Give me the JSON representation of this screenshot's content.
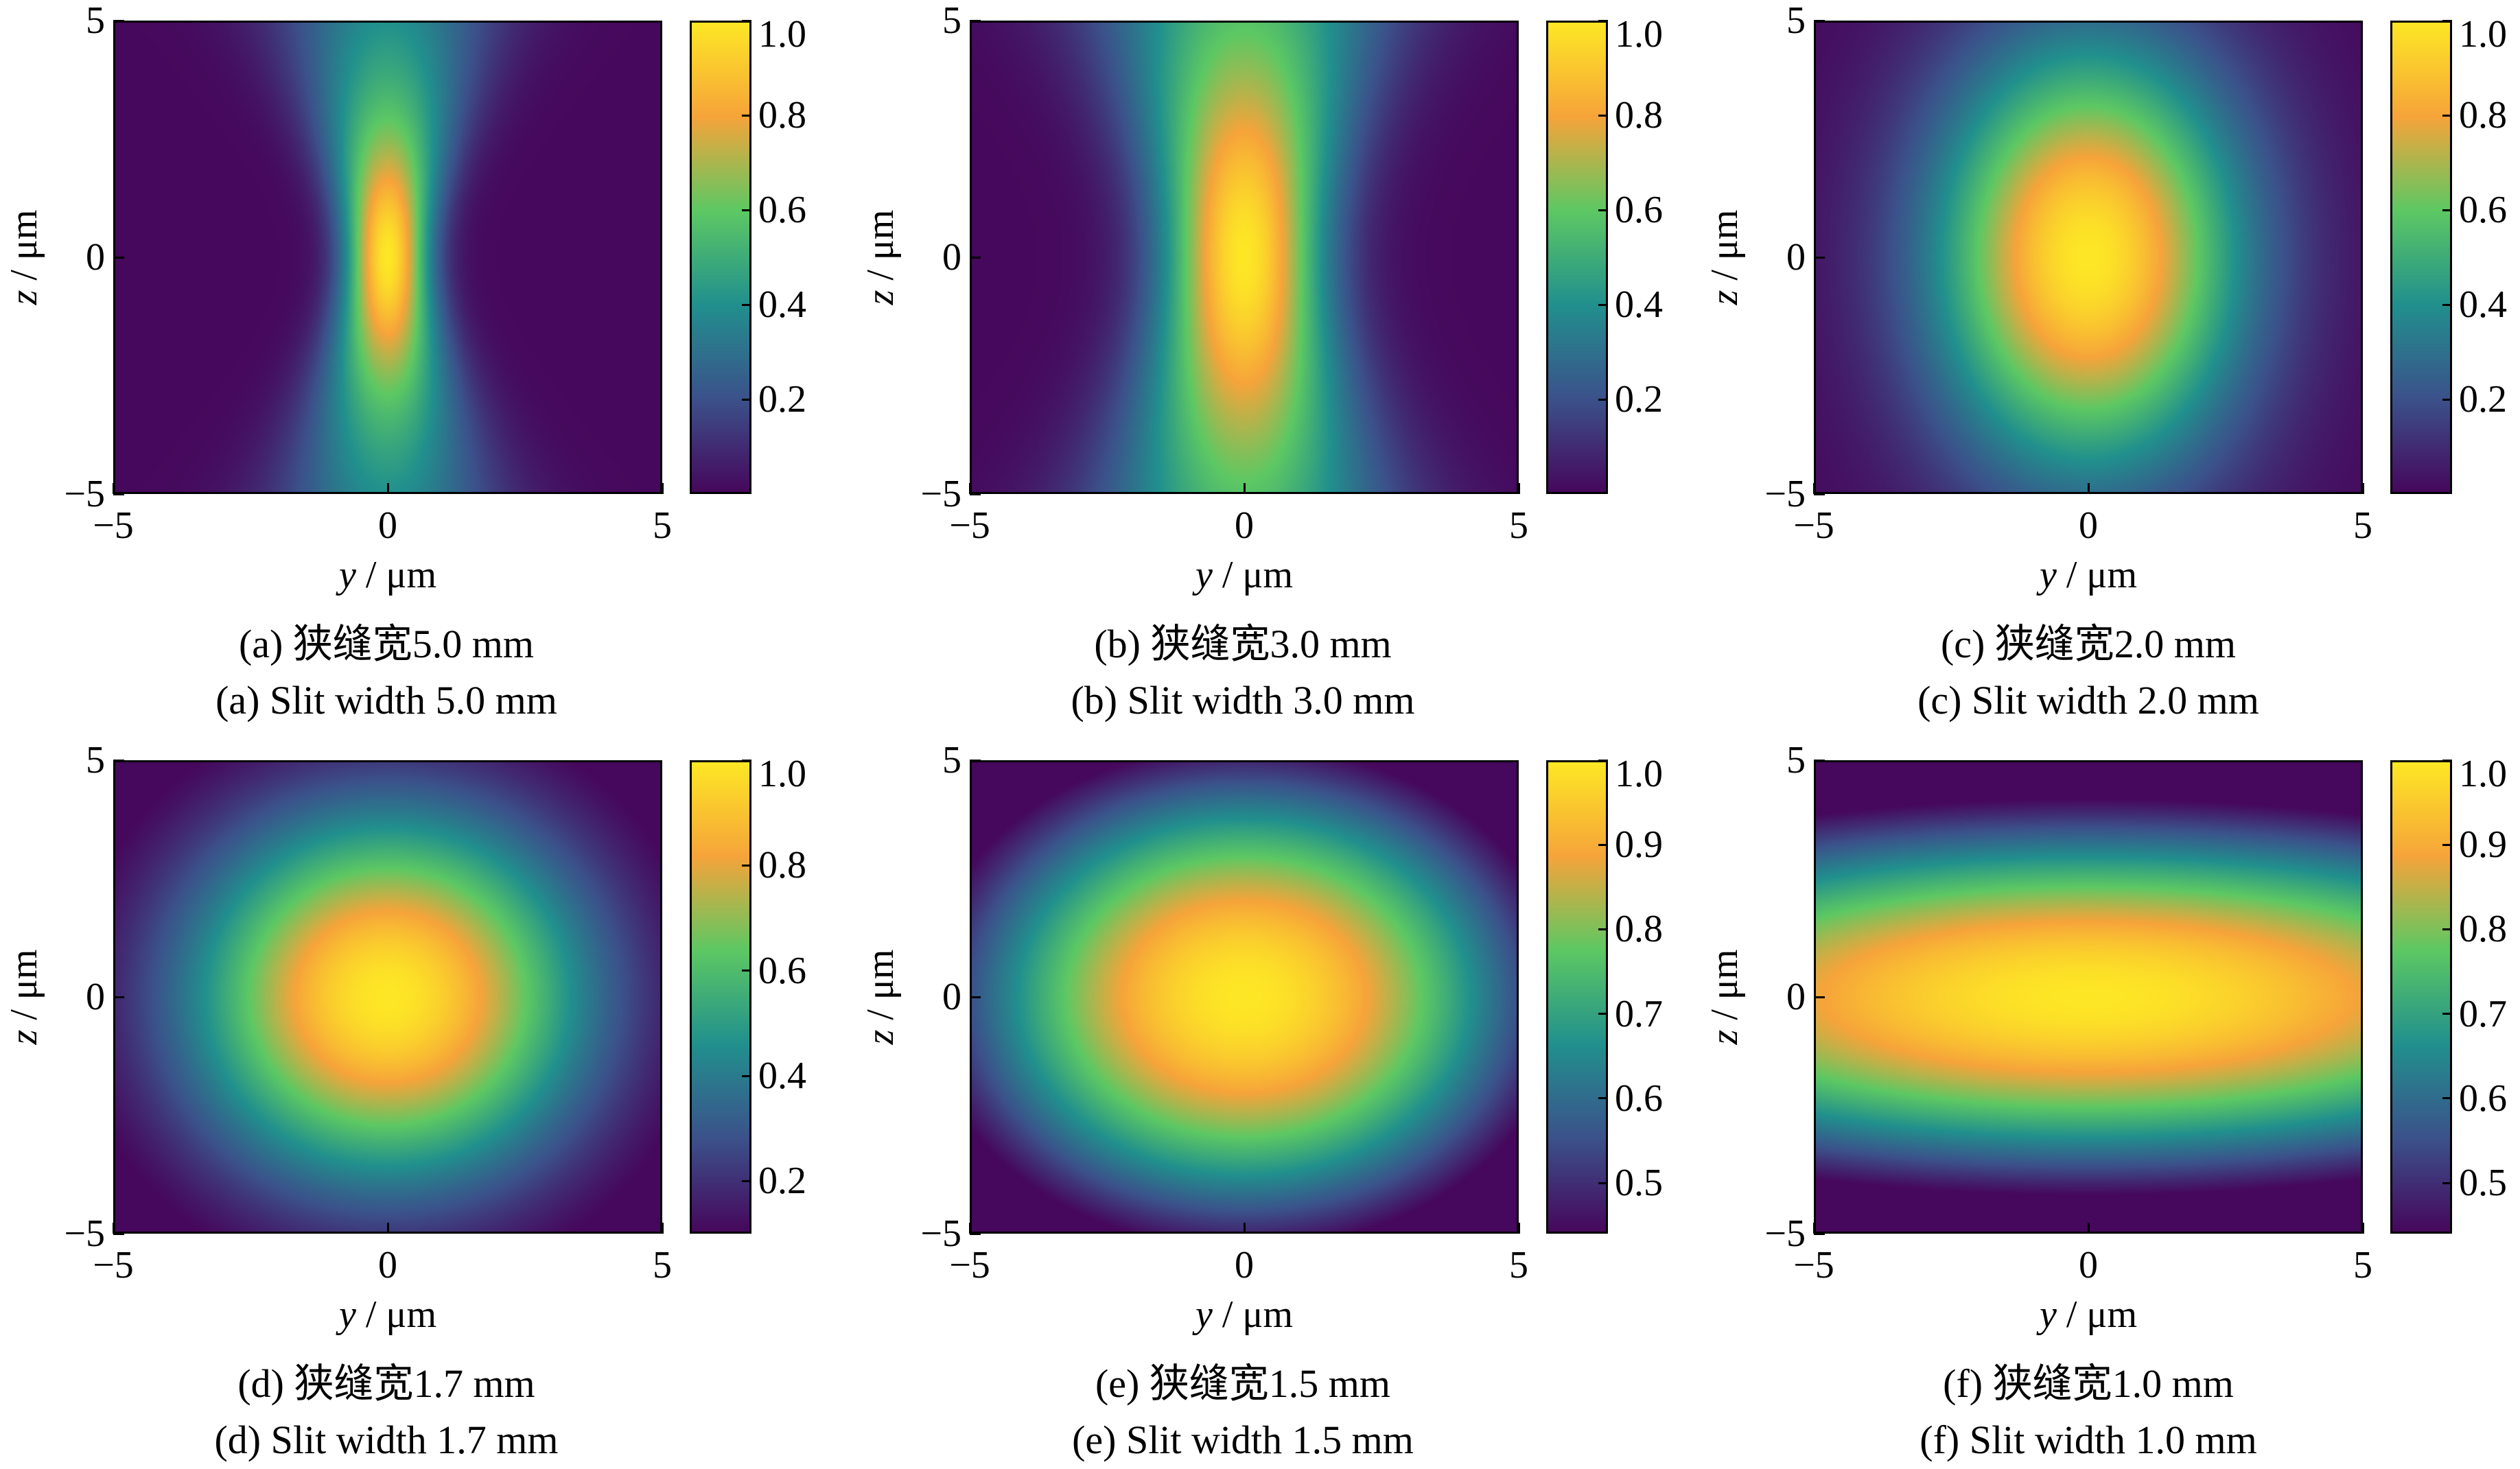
{
  "chart_data": [
    {
      "type": "heatmap",
      "caption_cn": "(a) 狭缝宽5.0 mm",
      "caption_en": "(a) Slit width 5.0 mm",
      "xlabel_var": "y",
      "xlabel_unit": " / μm",
      "ylabel_var": "z",
      "ylabel_unit": " / μm",
      "xlim": [
        -5,
        5
      ],
      "ylim": [
        -5,
        5
      ],
      "xticks": [
        "−5",
        "0",
        "5"
      ],
      "yticks": [
        "5",
        "0",
        "−5"
      ],
      "colorbar_ticks": [
        "1.0",
        "0.8",
        "0.6",
        "0.4",
        "0.2"
      ],
      "colorbar_values": [
        1.0,
        0.8,
        0.6,
        0.4,
        0.2
      ],
      "colorbar_range": [
        0.0,
        1.0
      ],
      "field": {
        "sigma_y0": 0.55,
        "z_rayleigh": 2.2,
        "y_floor": 0.0,
        "model": "focused"
      }
    },
    {
      "type": "heatmap",
      "caption_cn": "(b) 狭缝宽3.0 mm",
      "caption_en": "(b) Slit width 3.0 mm",
      "xlabel_var": "y",
      "xlabel_unit": " / μm",
      "ylabel_var": "z",
      "ylabel_unit": " / μm",
      "xlim": [
        -5,
        5
      ],
      "ylim": [
        -5,
        5
      ],
      "xticks": [
        "−5",
        "0",
        "5"
      ],
      "yticks": [
        "5",
        "0",
        "−5"
      ],
      "colorbar_ticks": [
        "1.0",
        "0.8",
        "0.6",
        "0.4",
        "0.2"
      ],
      "colorbar_values": [
        1.0,
        0.8,
        0.6,
        0.4,
        0.2
      ],
      "colorbar_range": [
        0.0,
        1.0
      ],
      "field": {
        "sigma_y0": 1.05,
        "z_rayleigh": 3.6,
        "y_floor": 0.0,
        "model": "focused"
      }
    },
    {
      "type": "heatmap",
      "caption_cn": "(c) 狭缝宽2.0 mm",
      "caption_en": "(c) Slit width 2.0 mm",
      "xlabel_var": "y",
      "xlabel_unit": " / μm",
      "ylabel_var": "z",
      "ylabel_unit": " / μm",
      "xlim": [
        -5,
        5
      ],
      "ylim": [
        -5,
        5
      ],
      "xticks": [
        "−5",
        "0",
        "5"
      ],
      "yticks": [
        "5",
        "0",
        "−5"
      ],
      "colorbar_ticks": [
        "1.0",
        "0.8",
        "0.6",
        "0.4",
        "0.2"
      ],
      "colorbar_values": [
        1.0,
        0.8,
        0.6,
        0.4,
        0.2
      ],
      "colorbar_range": [
        0.0,
        1.0
      ],
      "field": {
        "sigma_y": 2.0,
        "sigma_z": 3.2,
        "model": "gauss"
      }
    },
    {
      "type": "heatmap",
      "caption_cn": "(d) 狭缝宽1.7 mm",
      "caption_en": "(d) Slit width 1.7 mm",
      "xlabel_var": "y",
      "xlabel_unit": " / μm",
      "ylabel_var": "z",
      "ylabel_unit": " / μm",
      "xlim": [
        -5,
        5
      ],
      "ylim": [
        -5,
        5
      ],
      "xticks": [
        "−5",
        "0",
        "5"
      ],
      "yticks": [
        "5",
        "0",
        "−5"
      ],
      "colorbar_ticks": [
        "1.0",
        "0.8",
        "0.6",
        "0.4",
        "0.2"
      ],
      "colorbar_values": [
        1.0,
        0.8,
        0.6,
        0.4,
        0.2
      ],
      "colorbar_range": [
        0.1,
        1.0
      ],
      "field": {
        "sigma_y": 2.7,
        "sigma_z": 2.9,
        "model": "gauss"
      }
    },
    {
      "type": "heatmap",
      "caption_cn": "(e) 狭缝宽1.5 mm",
      "caption_en": "(e) Slit width 1.5 mm",
      "xlabel_var": "y",
      "xlabel_unit": " / μm",
      "ylabel_var": "z",
      "ylabel_unit": " / μm",
      "xlim": [
        -5,
        5
      ],
      "ylim": [
        -5,
        5
      ],
      "xticks": [
        "−5",
        "0",
        "5"
      ],
      "yticks": [
        "5",
        "0",
        "−5"
      ],
      "colorbar_ticks": [
        "1.0",
        "0.9",
        "0.8",
        "0.7",
        "0.6",
        "0.5"
      ],
      "colorbar_values": [
        1.0,
        0.9,
        0.8,
        0.7,
        0.6,
        0.5
      ],
      "colorbar_range": [
        0.44,
        1.0
      ],
      "field": {
        "sigma_y": 4.6,
        "sigma_z": 4.2,
        "model": "gauss"
      }
    },
    {
      "type": "heatmap",
      "caption_cn": "(f) 狭缝宽1.0 mm",
      "caption_en": "(f) Slit width 1.0 mm",
      "xlabel_var": "y",
      "xlabel_unit": " / μm",
      "ylabel_var": "z",
      "ylabel_unit": " / μm",
      "xlim": [
        -5,
        5
      ],
      "ylim": [
        -5,
        5
      ],
      "xticks": [
        "−5",
        "0",
        "5"
      ],
      "yticks": [
        "5",
        "0",
        "−5"
      ],
      "colorbar_ticks": [
        "1.0",
        "0.9",
        "0.8",
        "0.7",
        "0.6",
        "0.5"
      ],
      "colorbar_values": [
        1.0,
        0.9,
        0.8,
        0.7,
        0.6,
        0.5
      ],
      "colorbar_range": [
        0.44,
        1.0
      ],
      "field": {
        "sigma_y": 10.0,
        "sigma_z": 3.3,
        "model": "gauss"
      }
    }
  ],
  "colormap": [
    "#46085c",
    "#3b528b",
    "#21908d",
    "#5dc863",
    "#f6a43a",
    "#fde725"
  ]
}
